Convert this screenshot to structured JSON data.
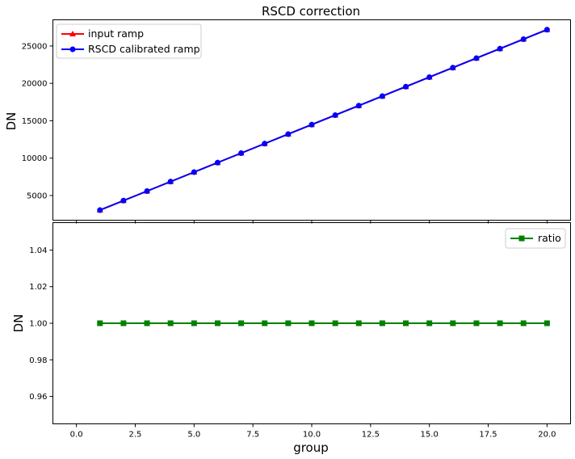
{
  "chart_data": [
    {
      "type": "line",
      "title": "RSCD correction",
      "xlabel": "",
      "ylabel": "DN",
      "xlim": [
        -1,
        21
      ],
      "ylim": [
        1700,
        28500
      ],
      "xticks": [
        0,
        2.5,
        5,
        7.5,
        10,
        12.5,
        15,
        17.5,
        20
      ],
      "xtick_labels_visible": false,
      "yticks": [
        5000,
        10000,
        15000,
        20000,
        25000
      ],
      "ytick_labels": [
        "5000",
        "10000",
        "15000",
        "20000",
        "25000"
      ],
      "legend_position": "upper-left",
      "grid": false,
      "x": [
        1,
        2,
        3,
        4,
        5,
        6,
        7,
        8,
        9,
        10,
        11,
        12,
        13,
        14,
        15,
        16,
        17,
        18,
        19,
        20
      ],
      "series": [
        {
          "name": "input ramp",
          "color": "#ff0000",
          "marker": "triangle",
          "values": [
            3050,
            4320,
            5590,
            6860,
            8130,
            9400,
            10670,
            11940,
            13210,
            14480,
            15750,
            17020,
            18290,
            19560,
            20830,
            22100,
            23370,
            24640,
            25910,
            27180
          ]
        },
        {
          "name": "RSCD calibrated ramp",
          "color": "#0000ff",
          "marker": "circle",
          "values": [
            3050,
            4320,
            5590,
            6860,
            8130,
            9400,
            10670,
            11940,
            13210,
            14480,
            15750,
            17020,
            18290,
            19560,
            20830,
            22100,
            23370,
            24640,
            25910,
            27180
          ]
        }
      ]
    },
    {
      "type": "line",
      "title": "",
      "xlabel": "group",
      "ylabel": "DN",
      "xlim": [
        -1,
        21
      ],
      "ylim": [
        0.945,
        1.055
      ],
      "xticks": [
        0,
        2.5,
        5,
        7.5,
        10,
        12.5,
        15,
        17.5,
        20
      ],
      "xtick_labels": [
        "0.0",
        "2.5",
        "5.0",
        "7.5",
        "10.0",
        "12.5",
        "15.0",
        "17.5",
        "20.0"
      ],
      "yticks": [
        0.96,
        0.98,
        1.0,
        1.02,
        1.04
      ],
      "ytick_labels": [
        "0.96",
        "0.98",
        "1.00",
        "1.02",
        "1.04"
      ],
      "legend_position": "upper-right",
      "grid": false,
      "x": [
        1,
        2,
        3,
        4,
        5,
        6,
        7,
        8,
        9,
        10,
        11,
        12,
        13,
        14,
        15,
        16,
        17,
        18,
        19,
        20
      ],
      "series": [
        {
          "name": "ratio",
          "color": "#008000",
          "marker": "square",
          "values": [
            1,
            1,
            1,
            1,
            1,
            1,
            1,
            1,
            1,
            1,
            1,
            1,
            1,
            1,
            1,
            1,
            1,
            1,
            1,
            1
          ]
        }
      ]
    }
  ]
}
